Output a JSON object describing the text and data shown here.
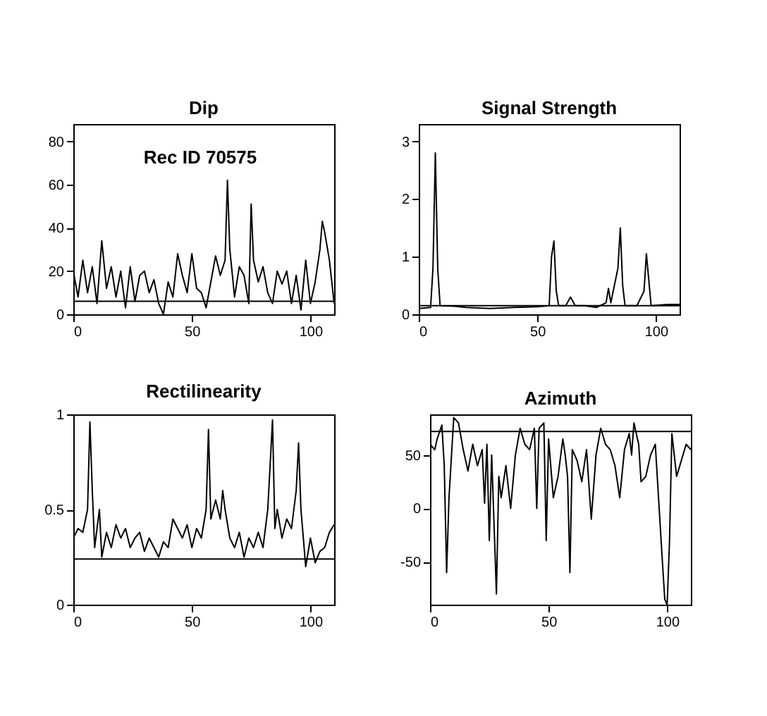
{
  "chart_data": [
    {
      "type": "line",
      "title": "Dip",
      "annotations": [
        "Rec ID 70575"
      ],
      "color": "#000000",
      "xlim": [
        0,
        110
      ],
      "xticks": [
        0,
        50,
        100
      ],
      "ylim": [
        0,
        88
      ],
      "yticks": [
        0,
        20,
        40,
        60,
        80
      ],
      "grid": false,
      "ref_lines": [
        {
          "axis": "y",
          "value": 6
        }
      ],
      "x": [
        0,
        2,
        4,
        6,
        8,
        10,
        12,
        14,
        16,
        18,
        20,
        22,
        24,
        26,
        28,
        30,
        32,
        34,
        36,
        38,
        40,
        42,
        44,
        46,
        48,
        50,
        52,
        54,
        56,
        58,
        60,
        62,
        64,
        65,
        66,
        68,
        70,
        72,
        74,
        75,
        76,
        78,
        80,
        82,
        84,
        86,
        88,
        90,
        92,
        94,
        96,
        98,
        100,
        102,
        104,
        105,
        106,
        108,
        110
      ],
      "values": [
        20,
        8,
        25,
        10,
        22,
        5,
        34,
        12,
        22,
        8,
        20,
        3,
        22,
        6,
        18,
        20,
        10,
        16,
        5,
        0,
        15,
        8,
        28,
        18,
        10,
        28,
        12,
        10,
        3,
        15,
        27,
        18,
        25,
        62,
        30,
        8,
        22,
        18,
        5,
        51,
        25,
        15,
        22,
        10,
        5,
        20,
        14,
        20,
        5,
        18,
        2,
        25,
        5,
        15,
        30,
        43,
        38,
        25,
        5
      ]
    },
    {
      "type": "line",
      "title": "Signal Strength",
      "color": "#000000",
      "xlim": [
        0,
        110
      ],
      "xticks": [
        0,
        50,
        100
      ],
      "ylim": [
        0,
        3.3
      ],
      "yticks": [
        0,
        1,
        2,
        3
      ],
      "grid": false,
      "ref_lines": [
        {
          "axis": "y",
          "value": 0.15
        }
      ],
      "x": [
        0,
        5,
        6,
        7,
        8,
        9,
        15,
        20,
        30,
        40,
        50,
        55,
        56,
        57,
        58,
        59,
        62,
        64,
        66,
        70,
        75,
        79,
        80,
        81,
        84,
        85,
        86,
        87,
        92,
        95,
        96,
        97,
        98,
        105,
        110
      ],
      "values": [
        0.1,
        0.12,
        0.8,
        2.8,
        0.8,
        0.15,
        0.14,
        0.12,
        0.1,
        0.12,
        0.13,
        0.15,
        1.0,
        1.27,
        0.4,
        0.15,
        0.15,
        0.3,
        0.15,
        0.15,
        0.12,
        0.2,
        0.45,
        0.2,
        0.8,
        1.5,
        0.5,
        0.15,
        0.15,
        0.4,
        1.05,
        0.6,
        0.15,
        0.17,
        0.17
      ]
    },
    {
      "type": "line",
      "title": "Rectilinearity",
      "color": "#000000",
      "xlim": [
        0,
        110
      ],
      "xticks": [
        0,
        50,
        100
      ],
      "ylim": [
        0,
        1
      ],
      "yticks": [
        0,
        0.5,
        1
      ],
      "grid": false,
      "ref_lines": [
        {
          "axis": "y",
          "value": 0.24
        }
      ],
      "x": [
        0,
        2,
        4,
        6,
        7,
        8,
        9,
        11,
        12,
        14,
        16,
        18,
        20,
        22,
        24,
        26,
        28,
        30,
        32,
        34,
        36,
        38,
        40,
        42,
        44,
        46,
        48,
        50,
        52,
        54,
        56,
        57,
        58,
        60,
        62,
        63,
        64,
        66,
        68,
        70,
        72,
        74,
        76,
        78,
        80,
        82,
        84,
        85,
        86,
        88,
        90,
        92,
        94,
        95,
        96,
        98,
        100,
        102,
        104,
        106,
        108,
        110
      ],
      "values": [
        0.35,
        0.4,
        0.38,
        0.5,
        0.96,
        0.6,
        0.3,
        0.5,
        0.25,
        0.38,
        0.3,
        0.42,
        0.35,
        0.4,
        0.3,
        0.35,
        0.38,
        0.28,
        0.35,
        0.3,
        0.25,
        0.33,
        0.3,
        0.45,
        0.4,
        0.35,
        0.42,
        0.3,
        0.4,
        0.35,
        0.5,
        0.92,
        0.45,
        0.55,
        0.45,
        0.6,
        0.5,
        0.35,
        0.3,
        0.38,
        0.25,
        0.35,
        0.3,
        0.38,
        0.3,
        0.5,
        0.97,
        0.4,
        0.5,
        0.35,
        0.45,
        0.4,
        0.6,
        0.85,
        0.5,
        0.2,
        0.35,
        0.22,
        0.28,
        0.3,
        0.38,
        0.42
      ]
    },
    {
      "type": "line",
      "title": "Azimuth",
      "color": "#000000",
      "xlim": [
        0,
        110
      ],
      "xticks": [
        0,
        50,
        100
      ],
      "ylim": [
        -90,
        88
      ],
      "yticks": [
        -50,
        0,
        50
      ],
      "grid": false,
      "ref_lines": [
        {
          "axis": "y",
          "value": 72
        }
      ],
      "x": [
        0,
        2,
        3,
        5,
        6,
        7,
        8,
        10,
        12,
        14,
        16,
        18,
        20,
        22,
        23,
        24,
        25,
        26,
        28,
        29,
        30,
        32,
        34,
        36,
        38,
        40,
        42,
        44,
        45,
        46,
        48,
        49,
        50,
        52,
        54,
        56,
        57,
        58,
        59,
        60,
        62,
        64,
        66,
        68,
        70,
        72,
        74,
        76,
        78,
        80,
        82,
        84,
        85,
        86,
        88,
        89,
        91,
        93,
        95,
        98,
        99,
        100,
        101,
        102,
        104,
        106,
        108,
        110
      ],
      "values": [
        60,
        55,
        65,
        78,
        40,
        -60,
        10,
        85,
        80,
        55,
        35,
        60,
        40,
        55,
        5,
        60,
        -30,
        50,
        -80,
        30,
        10,
        40,
        0,
        50,
        75,
        60,
        55,
        75,
        0,
        75,
        80,
        -30,
        65,
        10,
        30,
        65,
        50,
        30,
        -60,
        55,
        45,
        25,
        55,
        -10,
        50,
        75,
        60,
        55,
        40,
        10,
        55,
        70,
        50,
        80,
        60,
        25,
        30,
        50,
        60,
        -50,
        -85,
        -90,
        -30,
        70,
        30,
        45,
        60,
        55
      ]
    }
  ]
}
